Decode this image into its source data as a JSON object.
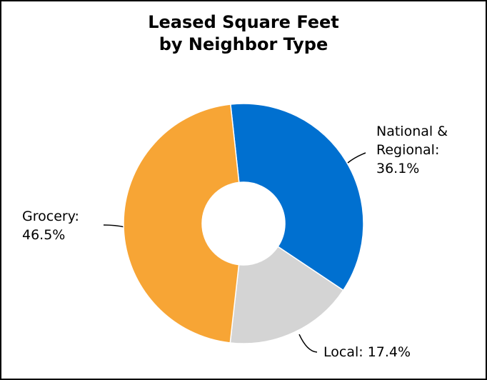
{
  "chart_data": {
    "type": "donut",
    "title": "Leased Square Feet\nby Neighbor Type",
    "categories": [
      "National & Regional:",
      "Local:",
      "Grocery:"
    ],
    "values": [
      36.1,
      17.4,
      46.5
    ],
    "value_labels": [
      "36.1%",
      "17.4%",
      "46.5%"
    ],
    "colors": [
      "#0070d0",
      "#d4d4d4",
      "#f7a535"
    ]
  }
}
